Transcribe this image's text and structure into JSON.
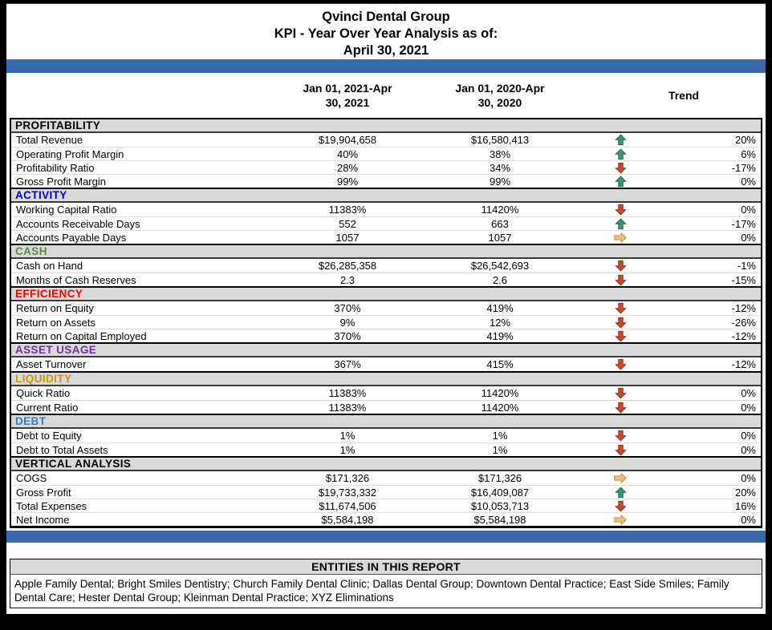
{
  "header": {
    "company": "Qvinci Dental Group",
    "report_title": "KPI - Year Over Year Analysis as of:",
    "as_of_date": "April 30, 2021"
  },
  "columns": {
    "current_period_line1": "Jan 01, 2021-Apr",
    "current_period_line2": "30, 2021",
    "prior_period_line1": "Jan 01, 2020-Apr",
    "prior_period_line2": "30, 2020",
    "trend": "Trend"
  },
  "colors": {
    "accent_bar_blue": "#3b69ae",
    "section_band_gray": "#d9d9d9",
    "page_background": "#ffffff",
    "frame_background": "#000000"
  },
  "trend_icon_colors": {
    "up": {
      "fill": "#42917d",
      "stroke": "#1f5c4b"
    },
    "down": {
      "fill": "#c7492c",
      "stroke": "#8a2f1a"
    },
    "flat": {
      "fill": "#ecc271",
      "stroke": "#bb8d3e"
    }
  },
  "sections": [
    {
      "name": "PROFITABILITY",
      "color": "#000000",
      "rows": [
        {
          "label": "Total Revenue",
          "current": "$19,904,658",
          "prior": "$16,580,413",
          "trend": "up",
          "change": "20%"
        },
        {
          "label": "Operating Profit Margin",
          "current": "40%",
          "prior": "38%",
          "trend": "up",
          "change": "6%"
        },
        {
          "label": "Profitability Ratio",
          "current": "28%",
          "prior": "34%",
          "trend": "down",
          "change": "-17%"
        },
        {
          "label": "Gross Profit Margin",
          "current": "99%",
          "prior": "99%",
          "trend": "up",
          "change": "0%"
        }
      ]
    },
    {
      "name": "ACTIVITY",
      "color": "#0000d4",
      "rows": [
        {
          "label": "Working Capital Ratio",
          "current": "11383%",
          "prior": "11420%",
          "trend": "down",
          "change": "0%"
        },
        {
          "label": "Accounts Receivable Days",
          "current": "552",
          "prior": "663",
          "trend": "up",
          "change": "-17%"
        },
        {
          "label": "Accounts Payable Days",
          "current": "1057",
          "prior": "1057",
          "trend": "flat",
          "change": "0%"
        }
      ]
    },
    {
      "name": "CASH",
      "color": "#5a8a44",
      "rows": [
        {
          "label": "Cash on Hand",
          "current": "$26,285,358",
          "prior": "$26,542,693",
          "trend": "down",
          "change": "-1%"
        },
        {
          "label": "Months of Cash Reserves",
          "current": "2.3",
          "prior": "2.6",
          "trend": "down",
          "change": "-15%"
        }
      ]
    },
    {
      "name": "EFFICIENCY",
      "color": "#ff0000",
      "rows": [
        {
          "label": "Return on Equity",
          "current": "370%",
          "prior": "419%",
          "trend": "down",
          "change": "-12%"
        },
        {
          "label": "Return on Assets",
          "current": "9%",
          "prior": "12%",
          "trend": "down",
          "change": "-26%"
        },
        {
          "label": "Return on Capital Employed",
          "current": "370%",
          "prior": "419%",
          "trend": "down",
          "change": "-12%"
        }
      ]
    },
    {
      "name": "ASSET USAGE",
      "color": "#7030a0",
      "rows": [
        {
          "label": "Asset Turnover",
          "current": "367%",
          "prior": "415%",
          "trend": "down",
          "change": "-12%"
        }
      ]
    },
    {
      "name": "LIQUIDITY",
      "color": "#c79810",
      "rows": [
        {
          "label": "Quick Ratio",
          "current": "11383%",
          "prior": "11420%",
          "trend": "down",
          "change": "0%"
        },
        {
          "label": "Current Ratio",
          "current": "11383%",
          "prior": "11420%",
          "trend": "down",
          "change": "0%"
        }
      ]
    },
    {
      "name": "DEBT",
      "color": "#2e82c6",
      "rows": [
        {
          "label": "Debt to Equity",
          "current": "1%",
          "prior": "1%",
          "trend": "down",
          "change": "0%"
        },
        {
          "label": "Debt to Total Assets",
          "current": "1%",
          "prior": "1%",
          "trend": "down",
          "change": "0%"
        }
      ]
    },
    {
      "name": "VERTICAL ANALYSIS",
      "color": "#000000",
      "rows": [
        {
          "label": "COGS",
          "current": "$171,326",
          "prior": "$171,326",
          "trend": "flat",
          "change": "0%"
        },
        {
          "label": "Gross Profit",
          "current": "$19,733,332",
          "prior": "$16,409,087",
          "trend": "up",
          "change": "20%"
        },
        {
          "label": "Total Expenses",
          "current": "$11,674,506",
          "prior": "$10,053,713",
          "trend": "down",
          "change": "16%"
        },
        {
          "label": "Net Income",
          "current": "$5,584,198",
          "prior": "$5,584,198",
          "trend": "flat",
          "change": "0%"
        }
      ]
    }
  ],
  "entities": {
    "header": "ENTITIES IN THIS REPORT",
    "list": "Apple Family Dental; Bright Smiles Dentistry; Church Family Dental Clinic; Dallas Dental Group; Downtown Dental Practice; East Side Smiles; Family Dental Care; Hester Dental Group; Kleinman Dental Practice; XYZ Eliminations"
  }
}
